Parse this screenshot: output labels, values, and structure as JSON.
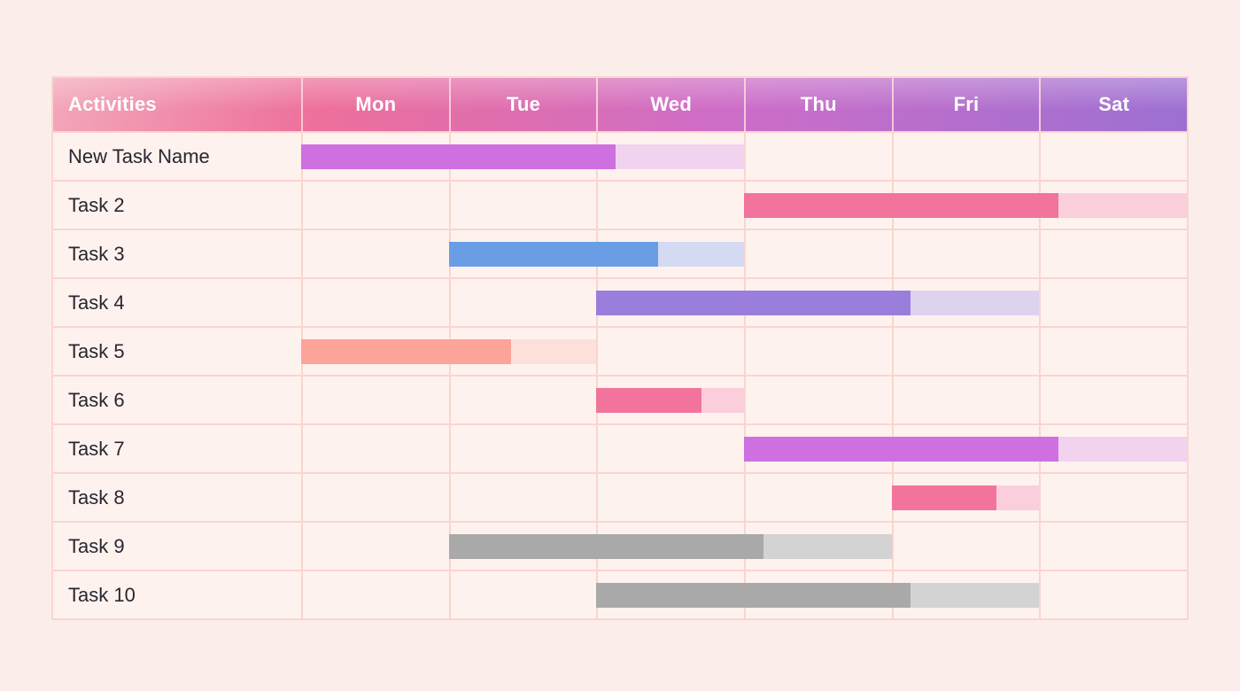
{
  "theme": {
    "page_background": "#fbeeea",
    "cell_background": "#fef2ef",
    "grid_line_color": "#fad5cd",
    "task_text_color": "#28262f",
    "header_text_color": "#ffffff",
    "header_gradient": [
      "#f3a7b9",
      "#ed6f9b",
      "#cd6dc8",
      "#9c70d2"
    ]
  },
  "chart_data": {
    "type": "gantt",
    "activities_header": "Activities",
    "columns": {
      "days": [
        "Mon",
        "Tue",
        "Wed",
        "Thu",
        "Fri",
        "Sat"
      ]
    },
    "tasks": [
      {
        "label": "New Task Name",
        "start_day": "Mon",
        "end_day": "Wed",
        "duration_days": 3,
        "progress": 0.71,
        "bar_color": "#ce70df",
        "track_color": "#f2d3ef"
      },
      {
        "label": "Task 2",
        "start_day": "Thu",
        "end_day": "Sat",
        "duration_days": 3,
        "progress": 0.71,
        "bar_color": "#f2749d",
        "track_color": "#fbcedc"
      },
      {
        "label": "Task 3",
        "start_day": "Tue",
        "end_day": "Wed",
        "duration_days": 2,
        "progress": 0.71,
        "bar_color": "#699de6",
        "track_color": "#d4daf1"
      },
      {
        "label": "Task 4",
        "start_day": "Wed",
        "end_day": "Fri",
        "duration_days": 3,
        "progress": 0.71,
        "bar_color": "#9a7edb",
        "track_color": "#ded3ee"
      },
      {
        "label": "Task 5",
        "start_day": "Mon",
        "end_day": "Tue",
        "duration_days": 2,
        "progress": 0.71,
        "bar_color": "#fca49a",
        "track_color": "#fde0da"
      },
      {
        "label": "Task 6",
        "start_day": "Wed",
        "end_day": "Wed",
        "duration_days": 1,
        "progress": 0.71,
        "bar_color": "#f2749d",
        "track_color": "#fbcedc"
      },
      {
        "label": "Task 7",
        "start_day": "Thu",
        "end_day": "Sat",
        "duration_days": 3,
        "progress": 0.71,
        "bar_color": "#ce70df",
        "track_color": "#f2d3ef"
      },
      {
        "label": "Task 8",
        "start_day": "Fri",
        "end_day": "Fri",
        "duration_days": 1,
        "progress": 0.71,
        "bar_color": "#f2749d",
        "track_color": "#fbcedc"
      },
      {
        "label": "Task 9",
        "start_day": "Tue",
        "end_day": "Thu",
        "duration_days": 3,
        "progress": 0.71,
        "bar_color": "#a9a9a9",
        "track_color": "#d3d3d3"
      },
      {
        "label": "Task 10",
        "start_day": "Wed",
        "end_day": "Fri",
        "duration_days": 3,
        "progress": 0.71,
        "bar_color": "#a9a9a9",
        "track_color": "#d3d3d3"
      }
    ]
  }
}
